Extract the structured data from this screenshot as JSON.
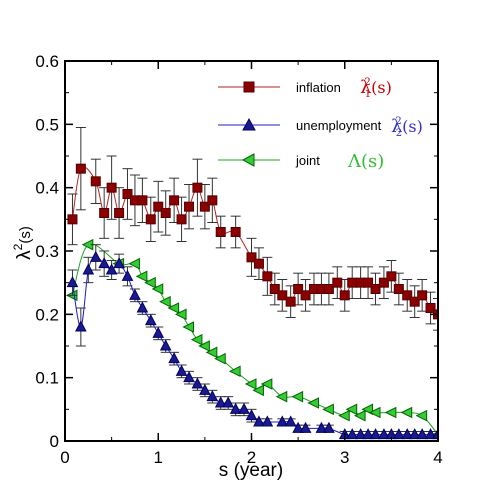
{
  "chart_data": {
    "type": "line",
    "xlabel": "s (year)",
    "ylabel": "λ²(s)",
    "xlim": [
      0,
      4
    ],
    "ylim": [
      0,
      0.6
    ],
    "x_ticks": [
      0,
      1,
      2,
      3,
      4
    ],
    "x_tick_labels": [
      "0",
      "1",
      "2",
      "3",
      "4"
    ],
    "y_ticks": [
      0,
      0.1,
      0.2,
      0.3,
      0.4,
      0.5,
      0.6
    ],
    "y_tick_labels": [
      "0",
      "0.1",
      "0.2",
      "0.3",
      "0.4",
      "0.5",
      "0.6"
    ],
    "grid": false,
    "legend_position": "top-right",
    "series": [
      {
        "name": "inflation",
        "symbol": "λ₁²(s)",
        "marker": "square",
        "color": "#b22222",
        "marker_fill": "#8b0000",
        "x": [
          0.08,
          0.17,
          0.33,
          0.42,
          0.5,
          0.58,
          0.67,
          0.75,
          0.83,
          0.92,
          1.0,
          1.08,
          1.17,
          1.25,
          1.33,
          1.42,
          1.5,
          1.58,
          1.67,
          1.83,
          2.0,
          2.08,
          2.17,
          2.25,
          2.33,
          2.42,
          2.5,
          2.58,
          2.67,
          2.75,
          2.83,
          2.92,
          3.0,
          3.08,
          3.17,
          3.25,
          3.33,
          3.42,
          3.5,
          3.58,
          3.67,
          3.75,
          3.83,
          3.92,
          4.0
        ],
        "y": [
          0.35,
          0.43,
          0.41,
          0.36,
          0.4,
          0.36,
          0.39,
          0.38,
          0.38,
          0.35,
          0.37,
          0.36,
          0.38,
          0.35,
          0.37,
          0.4,
          0.37,
          0.38,
          0.33,
          0.33,
          0.29,
          0.28,
          0.26,
          0.24,
          0.23,
          0.22,
          0.24,
          0.23,
          0.24,
          0.24,
          0.24,
          0.25,
          0.23,
          0.25,
          0.25,
          0.25,
          0.24,
          0.25,
          0.26,
          0.24,
          0.23,
          0.22,
          0.23,
          0.21,
          0.2
        ],
        "error": [
          0.04,
          0.065,
          0.035,
          0.04,
          0.05,
          0.04,
          0.04,
          0.04,
          0.035,
          0.035,
          0.04,
          0.035,
          0.035,
          0.035,
          0.035,
          0.045,
          0.035,
          0.035,
          0.025,
          0.025,
          0.03,
          0.025,
          0.03,
          0.025,
          0.025,
          0.025,
          0.025,
          0.025,
          0.025,
          0.025,
          0.025,
          0.025,
          0.025,
          0.025,
          0.025,
          0.025,
          0.025,
          0.025,
          0.025,
          0.025,
          0.025,
          0.025,
          0.025,
          0.025,
          0.025
        ]
      },
      {
        "name": "unemployment",
        "symbol": "λ₂²(s)",
        "marker": "triangle",
        "color": "#1f1fbf",
        "marker_fill": "#1a1a8c",
        "x": [
          0.08,
          0.17,
          0.25,
          0.33,
          0.42,
          0.5,
          0.58,
          0.67,
          0.75,
          0.83,
          0.92,
          1.0,
          1.08,
          1.17,
          1.25,
          1.33,
          1.42,
          1.5,
          1.58,
          1.67,
          1.75,
          1.83,
          1.92,
          2.0,
          2.08,
          2.17,
          2.33,
          2.42,
          2.5,
          2.58,
          2.75,
          2.83,
          3.0,
          3.08,
          3.17,
          3.25,
          3.33,
          3.42,
          3.5,
          3.58,
          3.67,
          3.75,
          3.83,
          3.92,
          4.0
        ],
        "y": [
          0.25,
          0.18,
          0.27,
          0.29,
          0.28,
          0.27,
          0.28,
          0.26,
          0.23,
          0.21,
          0.19,
          0.17,
          0.15,
          0.13,
          0.11,
          0.1,
          0.09,
          0.08,
          0.07,
          0.06,
          0.06,
          0.05,
          0.05,
          0.04,
          0.03,
          0.03,
          0.03,
          0.03,
          0.02,
          0.02,
          0.02,
          0.02,
          0.01,
          0.01,
          0.01,
          0.01,
          0.01,
          0.01,
          0.01,
          0.01,
          0.01,
          0.01,
          0.01,
          0.01,
          0.01
        ],
        "error": [
          0.02,
          0.03,
          0.02,
          0.02,
          0.02,
          0.015,
          0.015,
          0.015,
          0.01,
          0.01,
          0.01,
          0.01,
          0.01,
          0.01,
          0.01,
          0.01,
          0.01,
          0.01,
          0.01,
          0.01,
          0.01,
          0.01,
          0.01,
          0.01,
          0.005,
          0.005,
          0.005,
          0.005,
          0.005,
          0.005,
          0.005,
          0.005,
          0.005,
          0.005,
          0.005,
          0.005,
          0.005,
          0.005,
          0.005,
          0.005,
          0.005,
          0.005,
          0.005,
          0.005,
          0.005
        ]
      },
      {
        "name": "joint",
        "symbol": "Λ(s)",
        "marker": "triangle-left",
        "color": "#1fa01f",
        "marker_fill": "#33cc33",
        "x": [
          0.08,
          0.25,
          0.58,
          0.75,
          0.83,
          0.92,
          1.0,
          1.08,
          1.17,
          1.25,
          1.33,
          1.42,
          1.5,
          1.58,
          1.67,
          1.83,
          2.0,
          2.08,
          2.17,
          2.33,
          2.5,
          2.67,
          2.83,
          3.0,
          3.08,
          3.17,
          3.25,
          3.33,
          3.5,
          3.67,
          3.83,
          4.0
        ],
        "y": [
          0.23,
          0.31,
          0.28,
          0.28,
          0.26,
          0.25,
          0.24,
          0.22,
          0.21,
          0.2,
          0.18,
          0.16,
          0.15,
          0.14,
          0.13,
          0.11,
          0.09,
          0.08,
          0.09,
          0.07,
          0.07,
          0.06,
          0.05,
          0.04,
          0.05,
          0.04,
          0.05,
          0.045,
          0.045,
          0.045,
          0.04,
          0.01
        ],
        "error": []
      }
    ]
  }
}
